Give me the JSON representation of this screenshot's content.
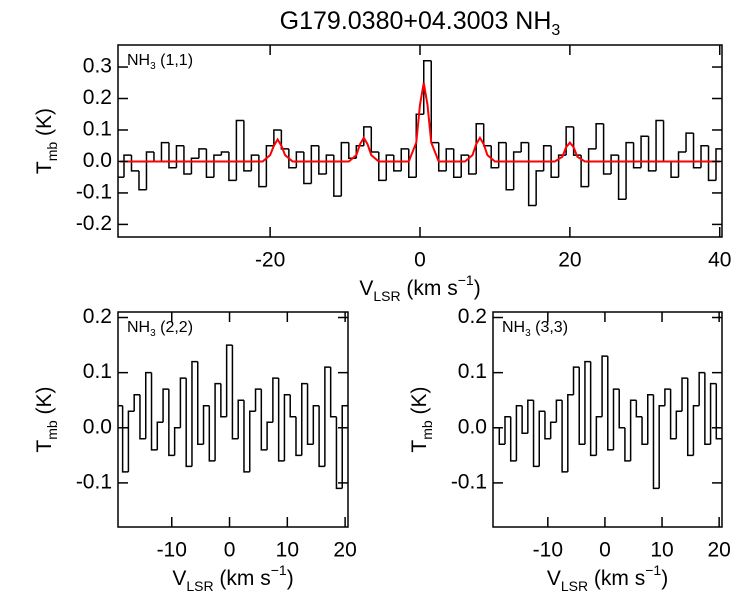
{
  "title": [
    "G179.0380+04.3003 NH",
    "3"
  ],
  "chart_data": [
    {
      "type": "step",
      "label": [
        "NH",
        "3",
        " (1,1)"
      ],
      "xlabel": [
        "V",
        "LSR",
        " (km s",
        "−1",
        ")"
      ],
      "ylabel": [
        "T",
        "mb",
        " (K)"
      ],
      "xlim": [
        -40.3,
        40.3
      ],
      "ylim": [
        -0.24,
        0.37
      ],
      "xticks": [
        -20,
        0,
        20,
        40
      ],
      "yticks": [
        -0.2,
        -0.1,
        {
          "value": 0,
          "label": "0.0"
        },
        0.1,
        0.2,
        0.3
      ],
      "series": [
        {
          "color": "#000000",
          "x": [
            -40,
            -39,
            -38,
            -37,
            -36,
            -35,
            -34,
            -33,
            -32,
            -31,
            -30,
            -29,
            -28,
            -27,
            -26,
            -25,
            -24,
            -23,
            -22,
            -21,
            -20,
            -19,
            -18,
            -17,
            -16,
            -15,
            -14,
            -13,
            -12,
            -11,
            -10,
            -9,
            -8,
            -7,
            -6,
            -5,
            -4,
            -3,
            -2,
            -1,
            0,
            1,
            2,
            3,
            4,
            5,
            6,
            7,
            8,
            9,
            10,
            11,
            12,
            13,
            14,
            15,
            16,
            17,
            18,
            19,
            20,
            21,
            22,
            23,
            24,
            25,
            26,
            27,
            28,
            29,
            30,
            31,
            32,
            33,
            34,
            35,
            36,
            37,
            38,
            39,
            40
          ],
          "values": [
            -0.05,
            0.02,
            -0.03,
            -0.09,
            0.03,
            0.0,
            0.06,
            -0.02,
            0.05,
            -0.04,
            0.01,
            0.04,
            -0.05,
            0.02,
            0.03,
            -0.06,
            0.13,
            -0.03,
            0.02,
            -0.08,
            0.05,
            0.1,
            0.04,
            -0.02,
            0.03,
            -0.07,
            0.05,
            -0.04,
            0.02,
            -0.11,
            0.06,
            0.01,
            0.05,
            0.11,
            0.03,
            -0.06,
            0.02,
            -0.03,
            0.04,
            -0.05,
            0.15,
            0.32,
            0.06,
            -0.03,
            0.04,
            -0.05,
            0.02,
            -0.04,
            0.12,
            0.05,
            -0.02,
            0.06,
            -0.09,
            0.03,
            0.06,
            -0.14,
            -0.03,
            0.05,
            -0.05,
            0.02,
            0.11,
            0.02,
            -0.08,
            0.04,
            0.12,
            -0.04,
            0.02,
            -0.12,
            0.06,
            -0.02,
            0.08,
            -0.03,
            0.13,
            0.0,
            -0.05,
            0.03,
            0.09,
            -0.02,
            0.05,
            -0.06,
            0.04
          ]
        },
        {
          "type": "line",
          "color": "#ff0000",
          "x": [
            -40,
            -21,
            -20,
            -19.5,
            -19,
            -18.5,
            -18,
            -17,
            -9.5,
            -8.5,
            -8,
            -7.5,
            -7,
            -6.5,
            -5.5,
            -1.5,
            -0.5,
            0,
            0.5,
            1,
            1.5,
            2.5,
            6,
            7,
            7.5,
            8,
            8.5,
            9,
            10,
            18,
            19,
            19.5,
            20,
            20.5,
            21,
            22,
            40
          ],
          "values": [
            0,
            0,
            0.02,
            0.05,
            0.07,
            0.05,
            0.02,
            0,
            0,
            0.02,
            0.055,
            0.075,
            0.055,
            0.02,
            0,
            0,
            0.06,
            0.18,
            0.25,
            0.18,
            0.06,
            0,
            0,
            0.02,
            0.055,
            0.075,
            0.055,
            0.02,
            0,
            0,
            0.015,
            0.045,
            0.06,
            0.045,
            0.015,
            0,
            0
          ]
        }
      ]
    },
    {
      "type": "step",
      "label": [
        "NH",
        "3",
        " (2,2)"
      ],
      "xlabel": [
        "V",
        "LSR",
        " (km s",
        "−1",
        ")"
      ],
      "ylabel": [
        "T",
        "mb",
        " (K)"
      ],
      "xlim": [
        -19.3,
        20.5
      ],
      "ylim": [
        -0.18,
        0.21
      ],
      "xticks": [
        -10,
        0,
        10,
        20
      ],
      "yticks": [
        -0.1,
        {
          "value": 0,
          "label": "0.0"
        },
        0.1,
        0.2
      ],
      "series": [
        {
          "color": "#000000",
          "x": [
            -19,
            -18,
            -17,
            -16,
            -15,
            -14,
            -13,
            -12,
            -11,
            -10,
            -9,
            -8,
            -7,
            -6,
            -5,
            -4,
            -3,
            -2,
            -1,
            0,
            1,
            2,
            3,
            4,
            5,
            6,
            7,
            8,
            9,
            10,
            11,
            12,
            13,
            14,
            15,
            16,
            17,
            18,
            19,
            20
          ],
          "values": [
            0.04,
            -0.08,
            0.03,
            0.06,
            -0.02,
            0.1,
            -0.04,
            0.01,
            0.07,
            -0.05,
            0.0,
            0.09,
            -0.07,
            0.12,
            -0.03,
            0.04,
            -0.06,
            0.08,
            0.02,
            0.15,
            -0.02,
            0.05,
            -0.08,
            0.03,
            0.07,
            -0.04,
            0.01,
            0.09,
            -0.06,
            0.06,
            0.02,
            -0.05,
            0.08,
            -0.03,
            0.04,
            -0.07,
            0.11,
            0.02,
            -0.11,
            0.04
          ]
        }
      ]
    },
    {
      "type": "step",
      "label": [
        "NH",
        "3",
        " (3,3)"
      ],
      "xlabel": [
        "V",
        "LSR",
        " (km s",
        "−1",
        ")"
      ],
      "ylabel": [
        "T",
        "mb",
        " (K)"
      ],
      "xlim": [
        -19.6,
        20.5
      ],
      "ylim": [
        -0.18,
        0.21
      ],
      "xticks": [
        -10,
        0,
        10,
        20
      ],
      "yticks": [
        -0.1,
        {
          "value": 0,
          "label": "0.0"
        },
        0.1,
        0.2
      ],
      "series": [
        {
          "color": "#000000",
          "x": [
            -19,
            -18,
            -17,
            -16,
            -15,
            -14,
            -13,
            -12,
            -11,
            -10,
            -9,
            -8,
            -7,
            -6,
            -5,
            -4,
            -3,
            -2,
            -1,
            0,
            1,
            2,
            3,
            4,
            5,
            6,
            7,
            8,
            9,
            10,
            11,
            12,
            13,
            14,
            15,
            16,
            17,
            18,
            19,
            20
          ],
          "values": [
            0.0,
            -0.03,
            0.02,
            -0.06,
            0.04,
            -0.01,
            0.05,
            -0.07,
            0.03,
            -0.02,
            0.01,
            0.05,
            -0.08,
            0.06,
            0.11,
            -0.03,
            0.12,
            -0.05,
            0.02,
            0.13,
            -0.04,
            0.07,
            0.0,
            -0.06,
            0.05,
            0.02,
            -0.03,
            0.06,
            -0.11,
            0.04,
            0.07,
            -0.02,
            0.03,
            0.09,
            -0.05,
            0.04,
            0.1,
            -0.03,
            0.08,
            -0.02
          ]
        }
      ]
    }
  ]
}
